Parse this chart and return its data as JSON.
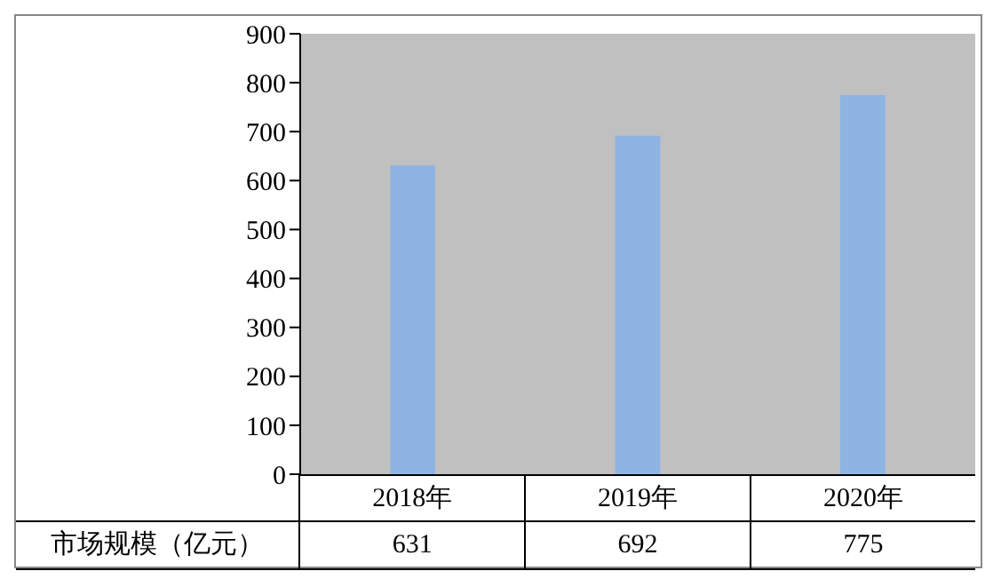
{
  "chart_data": {
    "type": "bar",
    "categories": [
      "2018年",
      "2019年",
      "2020年"
    ],
    "series": [
      {
        "name": "市场规模（亿元）",
        "color": "#8db4e2",
        "values": [
          631,
          692,
          775
        ]
      }
    ],
    "ylim": [
      0,
      900
    ],
    "yticks": [
      0,
      100,
      200,
      300,
      400,
      500,
      600,
      700,
      800,
      900
    ],
    "data_labels": true,
    "grid": false,
    "legend": "bottom"
  }
}
